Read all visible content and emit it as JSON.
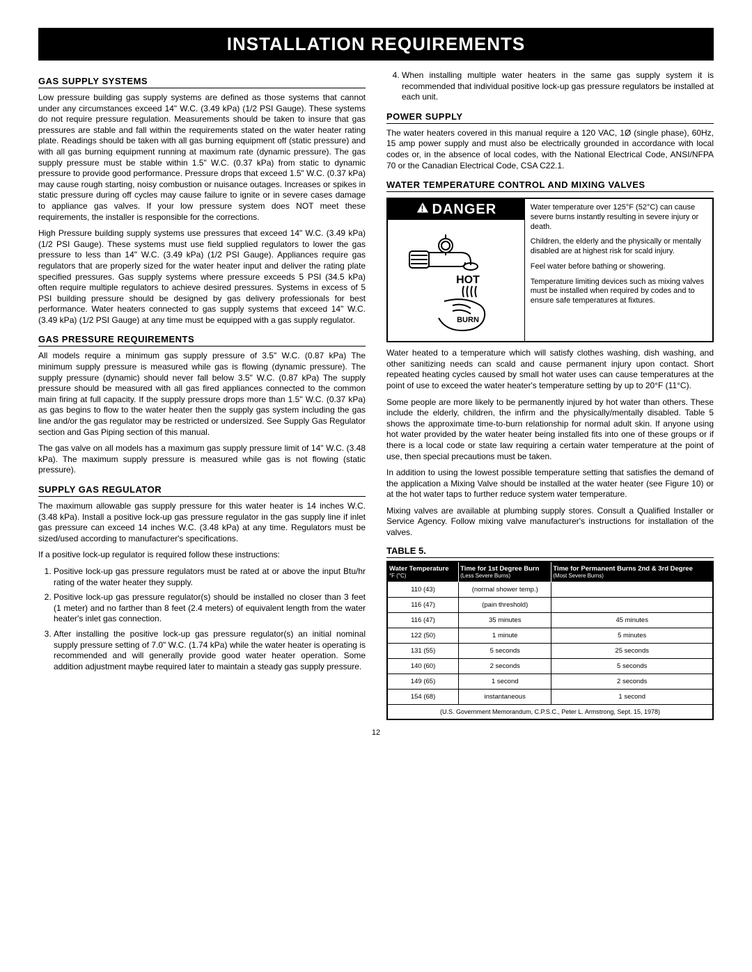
{
  "banner": "INSTALLATION REQUIREMENTS",
  "page_number": "12",
  "left": {
    "gas_supply_head": "GAS SUPPLY SYSTEMS",
    "gas_supply_p1": "Low pressure building gas supply systems are defined as those systems that cannot under any circumstances exceed 14\" W.C. (3.49 kPa) (1/2 PSI Gauge). These systems do not require pressure regulation. Measurements should be taken to insure that gas pressures are stable and fall within the requirements stated on the water heater rating plate. Readings should be taken with all gas burning equipment off (static pressure) and with all gas burning equipment running at maximum rate (dynamic pressure). The gas supply pressure must be stable within 1.5\" W.C. (0.37 kPa) from static to dynamic pressure to provide good performance. Pressure drops that exceed 1.5\" W.C. (0.37 kPa) may cause rough starting, noisy combustion or nuisance outages. Increases or spikes in static pressure during off cycles may cause failure to ignite or in severe cases damage to appliance gas valves. If your low pressure system does NOT meet these requirements, the installer is responsible for the corrections.",
    "gas_supply_p2": "High Pressure building supply systems use pressures that exceed 14\" W.C. (3.49 kPa) (1/2 PSI Gauge). These systems must use field supplied regulators to lower the gas pressure to less than 14\" W.C. (3.49 kPa) (1/2 PSI Gauge). Appliances require gas regulators that are properly sized for the water heater input and deliver the rating plate specified pressures. Gas supply systems where pressure exceeds 5 PSI (34.5 kPa) often require multiple regulators to achieve desired pressures. Systems in excess of 5 PSI building pressure should be designed by gas delivery professionals for best performance. Water heaters connected to gas supply systems that exceed 14\" W.C. (3.49 kPa) (1/2 PSI Gauge) at any time must be equipped with a gas supply regulator.",
    "gas_pressure_head": "GAS PRESSURE REQUIREMENTS",
    "gas_pressure_p1": "All models require a minimum gas supply pressure of 3.5\" W.C. (0.87 kPa) The minimum supply pressure is measured while gas is flowing (dynamic pressure). The supply pressure (dynamic) should never fall below 3.5\" W.C. (0.87 kPa) The supply pressure should be measured with all gas fired appliances connected to the common main firing at full capacity. If the supply pressure drops more than 1.5\" W.C. (0.37 kPa) as gas begins to flow to the water heater then the supply gas system including the gas line and/or the gas regulator may be restricted or undersized. See Supply Gas Regulator section and Gas Piping section of this manual.",
    "gas_pressure_p2": "The gas valve on all models has a maximum gas supply pressure limit of 14\" W.C. (3.48 kPa). The maximum supply pressure is measured while gas is not flowing (static pressure).",
    "supply_reg_head": "SUPPLY GAS REGULATOR",
    "supply_reg_p1": "The maximum allowable gas supply pressure for this water heater is 14 inches W.C. (3.48 kPa). Install a positive lock-up gas pressure regulator in the gas supply line if inlet gas pressure can exceed 14 inches W.C. (3.48 kPa) at any time. Regulators must be sized/used according to manufacturer's specifications.",
    "supply_reg_p2": "If a positive lock-up regulator is required follow these instructions:",
    "reg_li1": "Positive lock-up gas pressure regulators must be rated at or above the input Btu/hr rating of the water heater they supply.",
    "reg_li2": "Positive lock-up gas pressure regulator(s) should be installed no closer than 3 feet (1 meter) and no farther than 8 feet (2.4 meters) of equivalent length from the water heater's inlet gas connection.",
    "reg_li3": "After installing the positive lock-up gas pressure regulator(s) an initial nominal supply pressure setting of 7.0\" W.C. (1.74 kPa) while the water heater is operating is recommended and will generally provide good water heater operation. Some addition adjustment maybe required later to maintain a steady gas supply pressure."
  },
  "right": {
    "li4": "When installing multiple water heaters in the same gas supply system it is recommended that individual positive lock-up gas pressure regulators be installed at each unit.",
    "power_head": "POWER SUPPLY",
    "power_p1": "The water heaters covered in this manual require a 120 VAC, 1Ø (single phase), 60Hz, 15 amp power supply and must also be electrically grounded in accordance with local codes or, in the absence of local codes, with the National Electrical Code, ANSI/NFPA 70 or the Canadian Electrical Code, CSA C22.1.",
    "temp_head": "WATER TEMPERATURE CONTROL AND MIXING VALVES",
    "danger_label": "DANGER",
    "danger_p1": "Water temperature over 125°F (52°C) can cause severe burns instantly resulting in severe injury or death.",
    "danger_p2": "Children, the elderly and the physically or mentally disabled are at highest risk for scald injury.",
    "danger_p3": "Feel water before bathing or showering.",
    "danger_p4": "Temperature limiting devices such as mixing valves must be installed when required by codes and to ensure safe temperatures at fixtures.",
    "hot_label": "HOT",
    "burn_label": "BURN",
    "temp_p1": "Water heated to a temperature which will satisfy clothes washing, dish washing, and other sanitizing needs can scald and cause permanent injury upon contact. Short repeated heating cycles caused by small hot water uses can cause temperatures at the point of use to exceed the water heater's temperature setting by up to 20°F (11°C).",
    "temp_p2": "Some people are more likely to be permanently injured by hot water than others. These include the elderly, children, the infirm and the physically/mentally disabled. Table 5 shows the approximate time-to-burn relationship for normal adult skin. If anyone using hot water provided by the water heater being installed fits into one of these groups or if there is a local code or state law requiring a certain water temperature at the point of use, then special precautions must be taken.",
    "temp_p3": "In addition to using the lowest possible temperature setting that satisfies the demand of the application a Mixing Valve should be installed at the water heater (see Figure 10) or at the hot water taps to further reduce system water temperature.",
    "temp_p4": "Mixing valves are available at plumbing supply stores. Consult a Qualified Installer or Service Agency. Follow mixing valve manufacturer's instructions for installation of the valves.",
    "table_label": "TABLE 5.",
    "table": {
      "h1": "Water Temperature",
      "h1s": "°F (°C)",
      "h2": "Time for 1st Degree Burn",
      "h2s": "(Less Severe Burns)",
      "h3": "Time for Permanent Burns 2nd & 3rd Degree",
      "h3s": "(Most Severe Burns)",
      "rows": [
        [
          "110 (43)",
          "(normal shower temp.)",
          ""
        ],
        [
          "116 (47)",
          "(pain threshold)",
          ""
        ],
        [
          "116 (47)",
          "35 minutes",
          "45 minutes"
        ],
        [
          "122 (50)",
          "1 minute",
          "5 minutes"
        ],
        [
          "131 (55)",
          "5 seconds",
          "25 seconds"
        ],
        [
          "140 (60)",
          "2 seconds",
          "5 seconds"
        ],
        [
          "149 (65)",
          "1 second",
          "2 seconds"
        ],
        [
          "154 (68)",
          "instantaneous",
          "1 second"
        ]
      ],
      "footer": "(U.S. Government Memorandum, C.P.S.C., Peter L. Armstrong, Sept. 15, 1978)"
    }
  }
}
